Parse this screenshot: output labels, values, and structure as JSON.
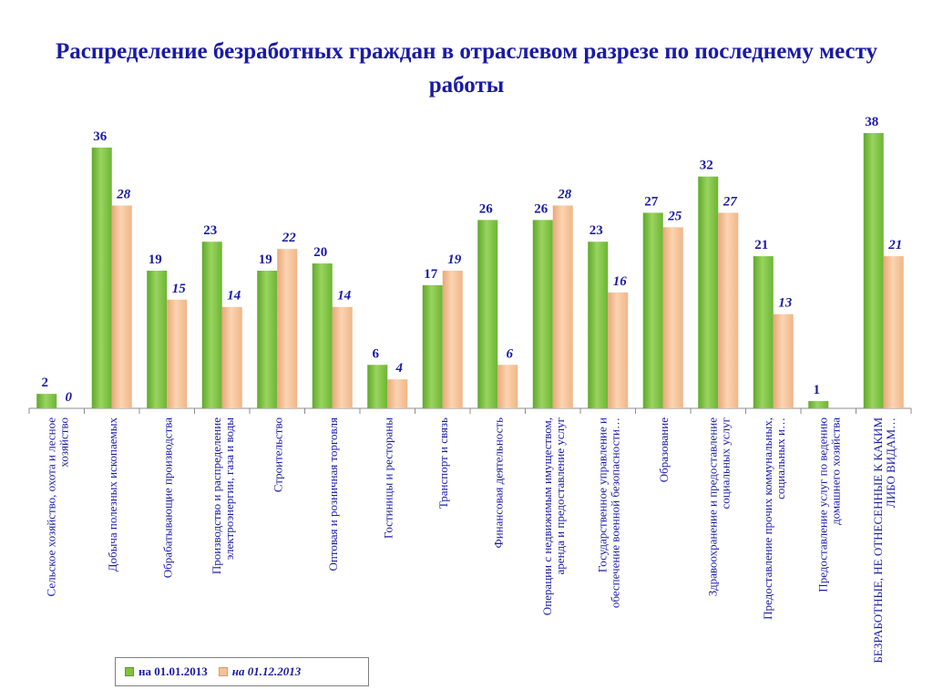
{
  "title": "Распределение безработных граждан в отраслевом разрезе по последнему месту работы",
  "legend": {
    "series1": "на 01.01.2013",
    "series2": "на 01.12.2013"
  },
  "colors": {
    "series1": "#7fc241",
    "series2": "#f7c196",
    "text": "#1a1aa8"
  },
  "chart_data": {
    "type": "bar",
    "title": "Распределение безработных граждан в отраслевом разрезе по последнему месту работы",
    "xlabel": "",
    "ylabel": "",
    "ylim": [
      0,
      38
    ],
    "grid": false,
    "legend_position": "bottom-left",
    "categories": [
      "Сельское хозяйство, охота и лесное хозяйство",
      "Добыча полезных ископаемых",
      "Обрабатывающие производства",
      "Производство и распределение электроэнергии, газа и воды",
      "Строительство",
      "Оптовая и розничная торговля",
      "Гостиницы и рестораны",
      "Транспорт и связь",
      "Финансовая деятельность",
      "Операции с недвижимым имуществом, аренда и предоставление услуг",
      "Государственное управление и обеспечение военной безопасности…",
      "Образование",
      "Здравоохранение и предоставление социальных услуг",
      "Предоставление прочих коммунальных, социальных и…",
      "Предоставление услуг по ведению домашнего хозяйства",
      "БЕЗРАБОТНЫЕ, НЕ ОТНЕСЕННЫЕ К КАКИМ ЛИБО ВИДАМ…"
    ],
    "series": [
      {
        "name": "на 01.01.2013",
        "values": [
          2,
          36,
          19,
          23,
          19,
          20,
          6,
          17,
          26,
          26,
          23,
          27,
          32,
          21,
          1,
          38
        ]
      },
      {
        "name": "на 01.12.2013",
        "values": [
          0,
          28,
          15,
          14,
          22,
          14,
          4,
          19,
          6,
          28,
          16,
          25,
          27,
          13,
          null,
          21
        ]
      }
    ]
  }
}
